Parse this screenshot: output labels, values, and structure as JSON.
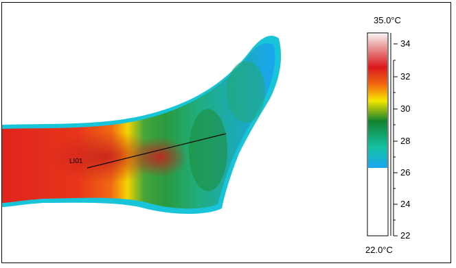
{
  "thermogram": {
    "line_label": "LI01"
  },
  "color_scale": {
    "max_label": "35.0°C",
    "min_label": "22.0°C",
    "ticks": [
      "34",
      "32",
      "30",
      "28",
      "26",
      "24",
      "22"
    ],
    "range_c": [
      22.0,
      35.0
    ],
    "colors": {
      "top": "#f7f2f2",
      "red": "#d9191e",
      "orange": "#f26a10",
      "yellow": "#f5e600",
      "green": "#14822f",
      "cyan": "#13c2a5",
      "blue": "#1aa6f0"
    }
  }
}
